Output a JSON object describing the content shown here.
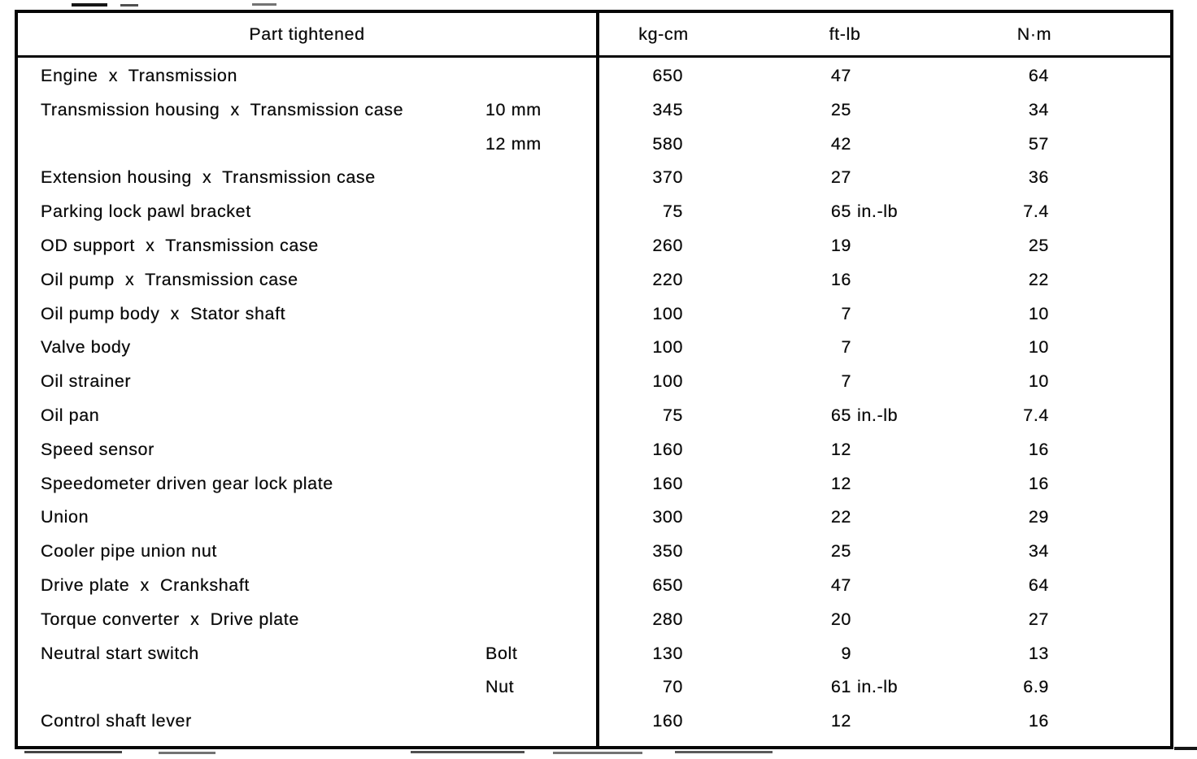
{
  "table": {
    "headers": {
      "part": "Part tightened",
      "kg_cm": "kg-cm",
      "ft_lb": "ft-lb",
      "n_m": "N·m"
    },
    "rows": [
      {
        "part": "Engine  x  Transmission",
        "size": "",
        "kg": "650",
        "ft": "47",
        "ft_suf": "",
        "nm": "64"
      },
      {
        "part": "Transmission housing  x  Transmission case",
        "size": "10 mm",
        "kg": "345",
        "ft": "25",
        "ft_suf": "",
        "nm": "34"
      },
      {
        "part": "",
        "size": "12 mm",
        "kg": "580",
        "ft": "42",
        "ft_suf": "",
        "nm": "57"
      },
      {
        "part": "Extension housing  x  Transmission case",
        "size": "",
        "kg": "370",
        "ft": "27",
        "ft_suf": "",
        "nm": "36"
      },
      {
        "part": "Parking lock pawl bracket",
        "size": "",
        "kg": "75",
        "ft": "65",
        "ft_suf": "in.-lb",
        "nm": "7.4"
      },
      {
        "part": "OD support  x  Transmission case",
        "size": "",
        "kg": "260",
        "ft": "19",
        "ft_suf": "",
        "nm": "25"
      },
      {
        "part": "Oil pump  x  Transmission case",
        "size": "",
        "kg": "220",
        "ft": "16",
        "ft_suf": "",
        "nm": "22"
      },
      {
        "part": "Oil pump body  x  Stator shaft",
        "size": "",
        "kg": "100",
        "ft": "7",
        "ft_suf": "",
        "nm": "10"
      },
      {
        "part": "Valve body",
        "size": "",
        "kg": "100",
        "ft": "7",
        "ft_suf": "",
        "nm": "10"
      },
      {
        "part": "Oil strainer",
        "size": "",
        "kg": "100",
        "ft": "7",
        "ft_suf": "",
        "nm": "10"
      },
      {
        "part": "Oil pan",
        "size": "",
        "kg": "75",
        "ft": "65",
        "ft_suf": "in.-lb",
        "nm": "7.4"
      },
      {
        "part": "Speed sensor",
        "size": "",
        "kg": "160",
        "ft": "12",
        "ft_suf": "",
        "nm": "16"
      },
      {
        "part": "Speedometer driven gear lock plate",
        "size": "",
        "kg": "160",
        "ft": "12",
        "ft_suf": "",
        "nm": "16"
      },
      {
        "part": "Union",
        "size": "",
        "kg": "300",
        "ft": "22",
        "ft_suf": "",
        "nm": "29"
      },
      {
        "part": "Cooler pipe union nut",
        "size": "",
        "kg": "350",
        "ft": "25",
        "ft_suf": "",
        "nm": "34"
      },
      {
        "part": "Drive plate  x  Crankshaft",
        "size": "",
        "kg": "650",
        "ft": "47",
        "ft_suf": "",
        "nm": "64"
      },
      {
        "part": "Torque converter  x  Drive plate",
        "size": "",
        "kg": "280",
        "ft": "20",
        "ft_suf": "",
        "nm": "27"
      },
      {
        "part": "Neutral start switch",
        "size": "Bolt",
        "kg": "130",
        "ft": "9",
        "ft_suf": "",
        "nm": "13"
      },
      {
        "part": "",
        "size": "Nut",
        "kg": "70",
        "ft": "61",
        "ft_suf": "in.-lb",
        "nm": "6.9"
      },
      {
        "part": "Control shaft lever",
        "size": "",
        "kg": "160",
        "ft": "12",
        "ft_suf": "",
        "nm": "16"
      }
    ]
  }
}
